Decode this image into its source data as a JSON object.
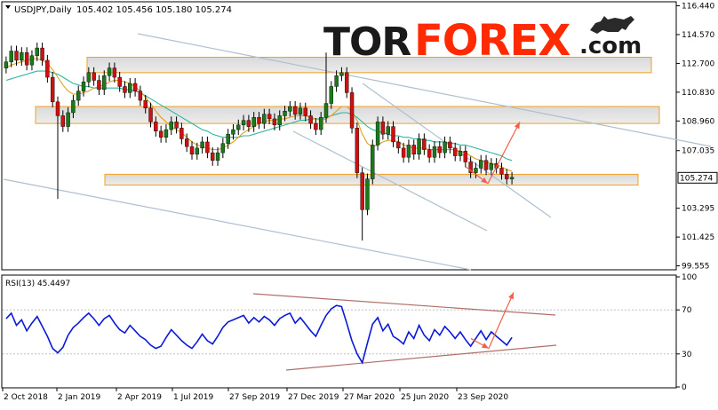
{
  "header": {
    "symbol_label": "USDJPY,Daily",
    "ohlc_label": "105.402 105.456 105.180 105.274"
  },
  "watermark": {
    "tor": "TOR",
    "forex": "FOREX",
    "dotcom": ".com",
    "tor_color": "#1a1a1a",
    "forex_color": "#ff2a00"
  },
  "chart_data": [
    {
      "type": "candlestick",
      "symbol": "USDJPY",
      "timeframe": "Daily",
      "last_price": 105.274,
      "last_price_label": "105.274",
      "ylim": [
        99.3,
        116.7
      ],
      "y_ticks": [
        "116.440",
        "114.570",
        "112.700",
        "110.830",
        "108.960",
        "107.035",
        "105.274",
        "103.295",
        "101.425",
        "99.555"
      ],
      "x_ticks": [
        "2 Oct 2018",
        "2 Jan 2019",
        "2 Apr 2019",
        "1 Jul 2019",
        "27 Sep 2019",
        "27 Dec 2019",
        "27 Mar 2020",
        "25 Jun 2020",
        "23 Sep 2020"
      ],
      "series_close": [
        112.8,
        113.5,
        112.9,
        113.4,
        112.6,
        113.2,
        113.7,
        112.9,
        111.8,
        110.2,
        109.3,
        108.6,
        109.5,
        110.3,
        110.9,
        111.5,
        112.1,
        111.6,
        111.0,
        111.9,
        112.4,
        111.8,
        111.2,
        110.8,
        111.4,
        110.9,
        110.3,
        109.8,
        108.9,
        108.3,
        107.9,
        108.4,
        108.9,
        108.5,
        107.8,
        107.3,
        106.8,
        107.2,
        107.6,
        106.9,
        106.4,
        106.9,
        107.5,
        108.1,
        108.4,
        108.7,
        109.0,
        108.6,
        109.2,
        108.8,
        109.4,
        109.1,
        108.7,
        109.3,
        109.6,
        109.9,
        109.4,
        109.8,
        109.3,
        108.8,
        108.4,
        109.2,
        110.1,
        111.2,
        111.9,
        112.1,
        110.8,
        108.5,
        105.6,
        103.2,
        105.2,
        107.4,
        108.9,
        108.1,
        108.6,
        107.6,
        107.2,
        106.6,
        107.4,
        106.8,
        107.8,
        107.1,
        106.6,
        107.3,
        106.9,
        107.6,
        107.2,
        106.7,
        107.0,
        106.3,
        105.6,
        105.9,
        106.4,
        105.8,
        106.2,
        105.9,
        105.5,
        105.2,
        105.3
      ],
      "ma_fast": [
        112.4,
        112.6,
        112.7,
        112.8,
        112.9,
        113.0,
        113.0,
        112.9,
        112.7,
        112.3,
        111.8,
        111.3,
        110.9,
        110.7,
        110.7,
        110.8,
        110.9,
        111.1,
        111.2,
        111.3,
        111.5,
        111.6,
        111.6,
        111.5,
        111.4,
        111.2,
        110.9,
        110.5,
        110.1,
        109.6,
        109.2,
        108.9,
        108.6,
        108.4,
        108.2,
        107.9,
        107.6,
        107.4,
        107.3,
        107.2,
        107.1,
        107.1,
        107.2,
        107.4,
        107.6,
        107.9,
        108.2,
        108.4,
        108.6,
        108.8,
        108.9,
        109.0,
        109.0,
        109.1,
        109.1,
        109.2,
        109.3,
        109.3,
        109.3,
        109.2,
        109.1,
        109.0,
        109.1,
        109.3,
        109.6,
        109.9,
        109.9,
        109.6,
        109.0,
        108.1,
        107.5,
        107.3,
        107.4,
        107.6,
        107.7,
        107.7,
        107.6,
        107.4,
        107.3,
        107.2,
        107.2,
        107.2,
        107.1,
        107.1,
        107.1,
        107.1,
        107.1,
        107.1,
        107.0,
        106.9,
        106.7,
        106.5,
        106.4,
        106.3,
        106.2,
        106.1,
        106.0,
        105.8,
        105.7
      ],
      "ma_slow": [
        111.6,
        111.7,
        111.8,
        111.9,
        112.0,
        112.1,
        112.2,
        112.2,
        112.2,
        112.1,
        112.0,
        111.8,
        111.6,
        111.4,
        111.3,
        111.2,
        111.2,
        111.1,
        111.1,
        111.1,
        111.1,
        111.1,
        111.1,
        111.0,
        111.0,
        110.9,
        110.8,
        110.6,
        110.4,
        110.2,
        110.0,
        109.8,
        109.6,
        109.4,
        109.2,
        109.0,
        108.8,
        108.6,
        108.4,
        108.3,
        108.1,
        108.0,
        107.9,
        107.9,
        107.9,
        107.9,
        108.0,
        108.0,
        108.1,
        108.2,
        108.3,
        108.4,
        108.5,
        108.6,
        108.7,
        108.8,
        108.9,
        109.0,
        109.0,
        109.1,
        109.1,
        109.1,
        109.2,
        109.3,
        109.4,
        109.5,
        109.5,
        109.4,
        109.2,
        108.9,
        108.6,
        108.4,
        108.3,
        108.2,
        108.1,
        108.0,
        108.0,
        107.9,
        107.9,
        107.8,
        107.8,
        107.7,
        107.7,
        107.6,
        107.6,
        107.6,
        107.5,
        107.5,
        107.4,
        107.4,
        107.3,
        107.2,
        107.1,
        107.0,
        106.9,
        106.8,
        106.7,
        106.5,
        106.4
      ],
      "support_resistance_zones": [
        {
          "low": 112.1,
          "high": 113.1
        },
        {
          "low": 108.8,
          "high": 109.9
        },
        {
          "low": 104.8,
          "high": 105.5
        }
      ],
      "forecast_path": [
        106.0,
        104.9,
        108.9
      ]
    },
    {
      "type": "line",
      "indicator_label": "RSI(13) 45.4497",
      "ylim": [
        0,
        100
      ],
      "y_ticks": [
        "100",
        "70",
        "30",
        "0"
      ],
      "series": [
        62,
        67,
        56,
        61,
        51,
        58,
        64,
        55,
        46,
        35,
        31,
        36,
        47,
        54,
        58,
        63,
        67,
        62,
        56,
        62,
        65,
        58,
        52,
        49,
        56,
        51,
        46,
        43,
        38,
        35,
        37,
        45,
        52,
        47,
        42,
        38,
        35,
        41,
        48,
        42,
        39,
        46,
        54,
        59,
        61,
        63,
        65,
        58,
        63,
        59,
        64,
        61,
        56,
        62,
        65,
        67,
        58,
        63,
        57,
        51,
        46,
        56,
        65,
        71,
        74,
        73,
        58,
        42,
        30,
        22,
        40,
        57,
        63,
        51,
        57,
        46,
        43,
        39,
        50,
        44,
        56,
        47,
        42,
        52,
        47,
        55,
        50,
        44,
        50,
        43,
        37,
        44,
        51,
        43,
        50,
        46,
        42,
        38,
        45
      ],
      "forecast_path": [
        44,
        35,
        86
      ]
    }
  ]
}
